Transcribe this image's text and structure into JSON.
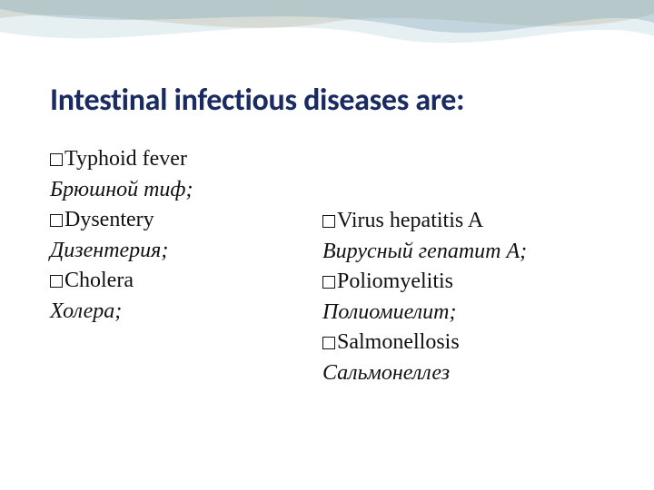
{
  "title": "Intestinal infectious diseases are:",
  "title_color": "#1a2b62",
  "title_fontsize": 34,
  "body_fontsize": 24,
  "body_color": "#111111",
  "background_color": "#ffffff",
  "decoration_colors": {
    "wave1": "#b7a97a",
    "wave2": "#d6e4ea",
    "wave3": "#7fa3b8"
  },
  "left": [
    {
      "kind": "bullet",
      "text": "Typhoid fever"
    },
    {
      "kind": "italic",
      "text": "Брюшной тиф;"
    },
    {
      "kind": "bullet",
      "text": "Dysentery"
    },
    {
      "kind": "italic",
      "text": " Дизентерия;"
    },
    {
      "kind": "bullet",
      "text": "Cholera"
    },
    {
      "kind": "italic",
      "text": "Холера;"
    }
  ],
  "right": [
    {
      "kind": "bullet",
      "text": "Virus hepatitis  A"
    },
    {
      "kind": "italic",
      "text": "Вирусный гепатит А;"
    },
    {
      "kind": "bullet",
      "text": "Poliomyelitis"
    },
    {
      "kind": "italic",
      "text": "Полиомиелит;"
    },
    {
      "kind": "bullet",
      "text": "Salmonellosis"
    },
    {
      "kind": "italic",
      "text": "Сальмонеллез"
    }
  ]
}
